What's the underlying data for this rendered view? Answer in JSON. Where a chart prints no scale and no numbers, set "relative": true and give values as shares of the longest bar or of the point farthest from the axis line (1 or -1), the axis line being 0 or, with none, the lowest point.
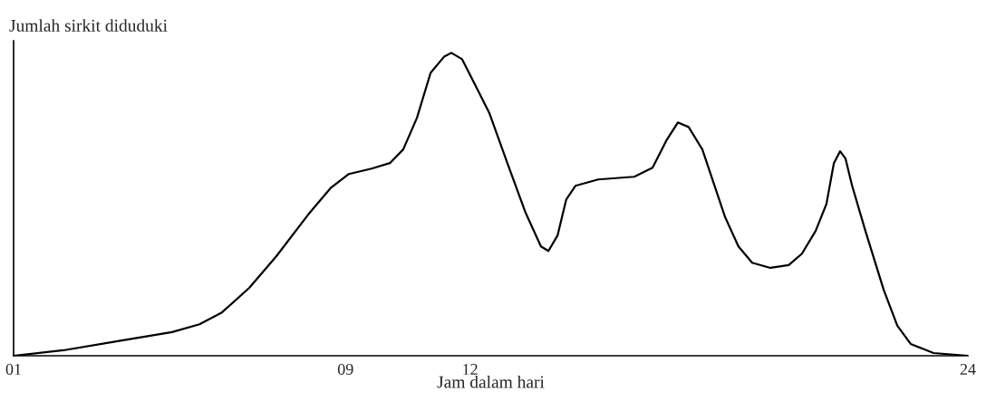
{
  "chart_data": {
    "type": "line",
    "relative": true,
    "ylabel": "Jumlah sirkit diduduki",
    "xlabel": "Jam dalam hari",
    "xlim": [
      1,
      24
    ],
    "xticks": [
      {
        "value": 1,
        "label": "01"
      },
      {
        "value": 9,
        "label": "09"
      },
      {
        "value": 12,
        "label": "12"
      },
      {
        "value": 24,
        "label": "24"
      }
    ],
    "tick_labels": "x",
    "grid": false,
    "legend": false,
    "marker": "none",
    "line_style": "solid",
    "series": [
      {
        "color": "#000000",
        "x": [
          1,
          2.2,
          3.51,
          4.82,
          5.48,
          6.02,
          6.68,
          7.33,
          8.1,
          8.65,
          9.08,
          9.63,
          10.07,
          10.39,
          10.72,
          11.05,
          11.38,
          11.55,
          11.81,
          12.14,
          12.47,
          12.9,
          13.34,
          13.71,
          13.89,
          14.11,
          14.32,
          14.54,
          15.09,
          15.96,
          16.4,
          16.73,
          17.01,
          17.27,
          17.6,
          18.15,
          18.47,
          18.8,
          19.24,
          19.68,
          20.0,
          20.33,
          20.59,
          20.77,
          20.92,
          21.05,
          21.21,
          21.53,
          21.97,
          22.3,
          22.62,
          23.17,
          24
        ],
        "values": [
          0,
          0.018,
          0.048,
          0.078,
          0.104,
          0.143,
          0.224,
          0.328,
          0.466,
          0.555,
          0.6,
          0.618,
          0.636,
          0.681,
          0.785,
          0.934,
          0.988,
          1,
          0.979,
          0.89,
          0.8,
          0.636,
          0.472,
          0.361,
          0.346,
          0.397,
          0.516,
          0.561,
          0.582,
          0.591,
          0.621,
          0.71,
          0.77,
          0.755,
          0.681,
          0.457,
          0.361,
          0.307,
          0.29,
          0.299,
          0.337,
          0.412,
          0.501,
          0.636,
          0.675,
          0.651,
          0.561,
          0.412,
          0.218,
          0.099,
          0.039,
          0.009,
          0
        ]
      }
    ]
  }
}
